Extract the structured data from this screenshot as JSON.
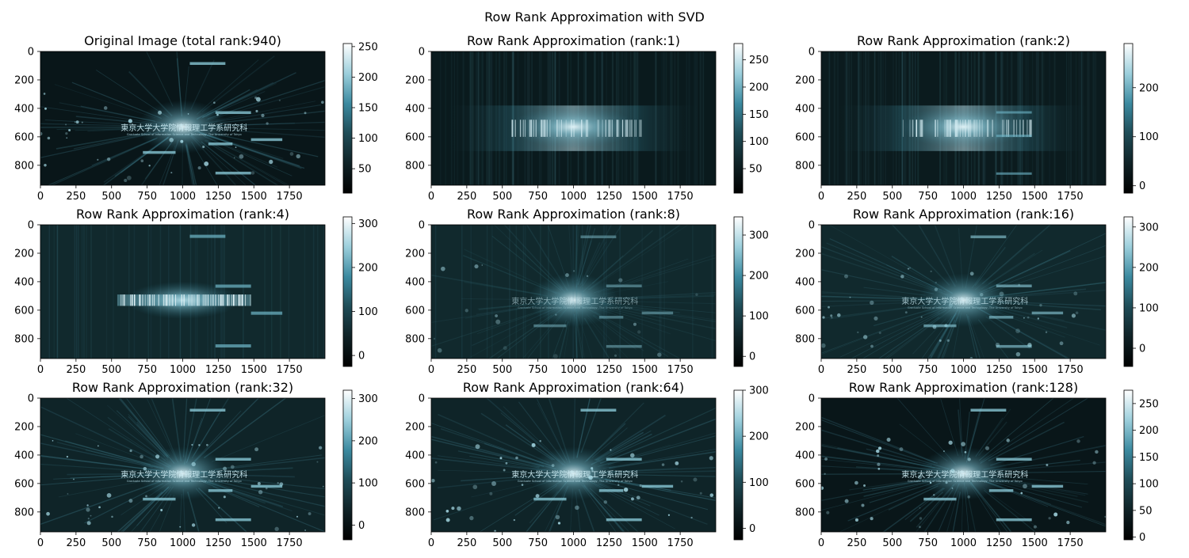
{
  "figure": {
    "title": "Row Rank Approximation with SVD"
  },
  "colormap": [
    "#000000",
    "#0f2226",
    "#1f4c57",
    "#3c8aa0",
    "#9ccfdc",
    "#ffffff"
  ],
  "image_text": {
    "title_jp": "東京大学大学院情報理工学系研究科",
    "subtitle_en": "Graduate School of Information Science and Technology, The University of Tokyo"
  },
  "chart_data": [
    {
      "type": "heatmap",
      "title": "Original Image (total rank:940)",
      "rank": 940,
      "xlim": [
        0,
        2000
      ],
      "ylim": [
        940,
        0
      ],
      "xticks": [
        0,
        250,
        500,
        750,
        1000,
        1250,
        1500,
        1750
      ],
      "yticks": [
        0,
        200,
        400,
        600,
        800
      ],
      "colorbar": {
        "min": 10,
        "max": 255,
        "ticks": [
          50,
          100,
          150,
          200,
          250
        ]
      }
    },
    {
      "type": "heatmap",
      "title": "Row Rank Approximation (rank:1)",
      "rank": 1,
      "xlim": [
        0,
        2000
      ],
      "ylim": [
        940,
        0
      ],
      "xticks": [
        0,
        250,
        500,
        750,
        1000,
        1250,
        1500,
        1750
      ],
      "yticks": [
        0,
        200,
        400,
        600,
        800
      ],
      "colorbar": {
        "min": 5,
        "max": 280,
        "ticks": [
          50,
          100,
          150,
          200,
          250
        ]
      }
    },
    {
      "type": "heatmap",
      "title": "Row Rank Approximation (rank:2)",
      "rank": 2,
      "xlim": [
        0,
        2000
      ],
      "ylim": [
        940,
        0
      ],
      "xticks": [
        0,
        250,
        500,
        750,
        1000,
        1250,
        1500,
        1750
      ],
      "yticks": [
        0,
        200,
        400,
        600,
        800
      ],
      "colorbar": {
        "min": -15,
        "max": 290,
        "ticks": [
          0,
          100,
          200
        ]
      }
    },
    {
      "type": "heatmap",
      "title": "Row Rank Approximation (rank:4)",
      "rank": 4,
      "xlim": [
        0,
        2000
      ],
      "ylim": [
        940,
        0
      ],
      "xticks": [
        0,
        250,
        500,
        750,
        1000,
        1250,
        1500,
        1750
      ],
      "yticks": [
        0,
        200,
        400,
        600,
        800
      ],
      "colorbar": {
        "min": -25,
        "max": 315,
        "ticks": [
          0,
          100,
          200,
          300
        ]
      }
    },
    {
      "type": "heatmap",
      "title": "Row Rank Approximation (rank:8)",
      "rank": 8,
      "xlim": [
        0,
        2000
      ],
      "ylim": [
        940,
        0
      ],
      "xticks": [
        0,
        250,
        500,
        750,
        1000,
        1250,
        1500,
        1750
      ],
      "yticks": [
        0,
        200,
        400,
        600,
        800
      ],
      "colorbar": {
        "min": -25,
        "max": 345,
        "ticks": [
          0,
          100,
          200,
          300
        ]
      }
    },
    {
      "type": "heatmap",
      "title": "Row Rank Approximation (rank:16)",
      "rank": 16,
      "xlim": [
        0,
        2000
      ],
      "ylim": [
        940,
        0
      ],
      "xticks": [
        0,
        250,
        500,
        750,
        1000,
        1250,
        1500,
        1750
      ],
      "yticks": [
        0,
        200,
        400,
        600,
        800
      ],
      "colorbar": {
        "min": -45,
        "max": 325,
        "ticks": [
          0,
          100,
          200,
          300
        ]
      }
    },
    {
      "type": "heatmap",
      "title": "Row Rank Approximation (rank:32)",
      "rank": 32,
      "xlim": [
        0,
        2000
      ],
      "ylim": [
        940,
        0
      ],
      "xticks": [
        0,
        250,
        500,
        750,
        1000,
        1250,
        1500,
        1750
      ],
      "yticks": [
        0,
        200,
        400,
        600,
        800
      ],
      "colorbar": {
        "min": -35,
        "max": 320,
        "ticks": [
          0,
          100,
          200,
          300
        ]
      }
    },
    {
      "type": "heatmap",
      "title": "Row Rank Approximation (rank:64)",
      "rank": 64,
      "xlim": [
        0,
        2000
      ],
      "ylim": [
        940,
        0
      ],
      "xticks": [
        0,
        250,
        500,
        750,
        1000,
        1250,
        1500,
        1750
      ],
      "yticks": [
        0,
        200,
        400,
        600,
        800
      ],
      "colorbar": {
        "min": -25,
        "max": 300,
        "ticks": [
          0,
          100,
          200,
          300
        ]
      }
    },
    {
      "type": "heatmap",
      "title": "Row Rank Approximation (rank:128)",
      "rank": 128,
      "xlim": [
        0,
        2000
      ],
      "ylim": [
        940,
        0
      ],
      "xticks": [
        0,
        250,
        500,
        750,
        1000,
        1250,
        1500,
        1750
      ],
      "yticks": [
        0,
        200,
        400,
        600,
        800
      ],
      "colorbar": {
        "min": -5,
        "max": 275,
        "ticks": [
          0,
          50,
          100,
          150,
          200,
          250
        ]
      }
    }
  ]
}
